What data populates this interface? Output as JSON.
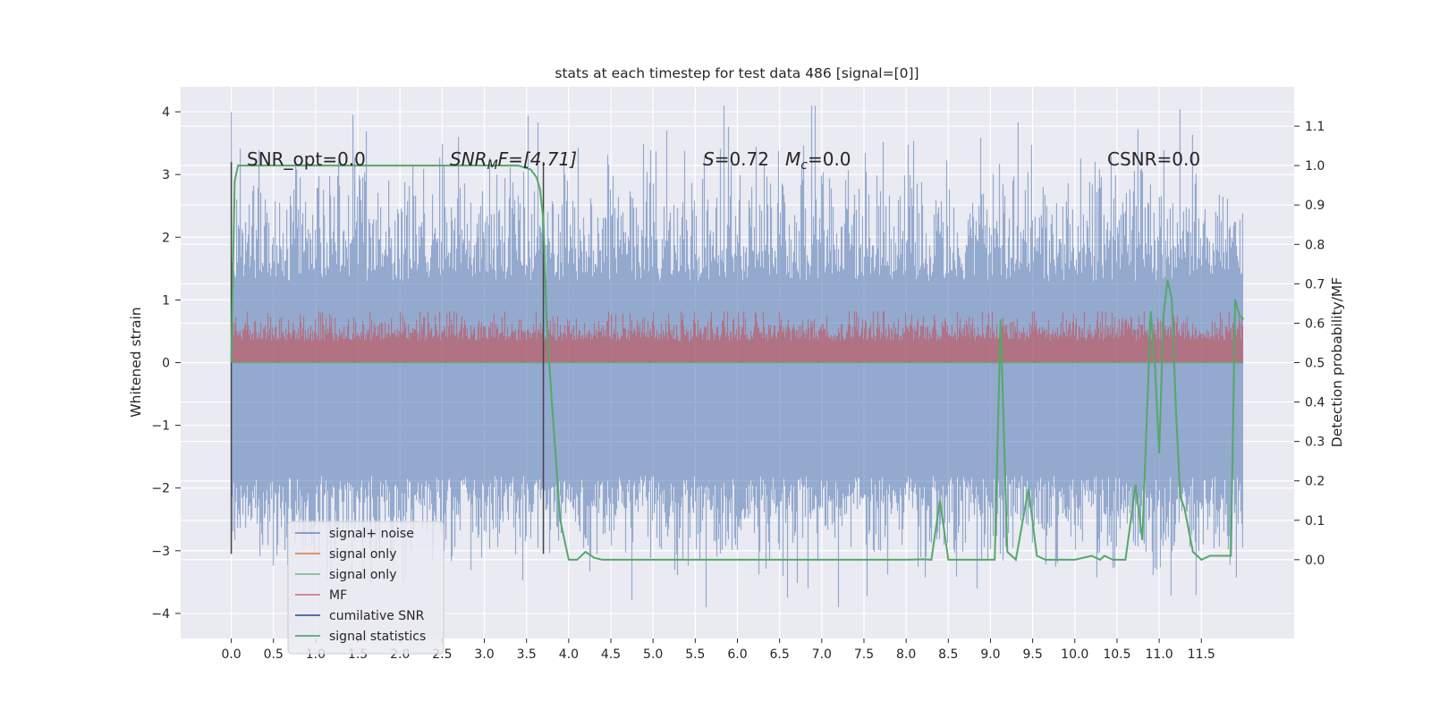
{
  "chart_data": {
    "type": "line",
    "title": "stats at each timestep for test data 486 [signal=[0]]",
    "xlabel": "",
    "ylabel": "Whitened strain",
    "ylabel_right": "Detection probability/MF",
    "xlim": [
      -0.6,
      12.6
    ],
    "ylim": [
      -4.4,
      4.4
    ],
    "ylim_right": [
      -0.2,
      1.2
    ],
    "x_ticks": [
      "0.0",
      "0.5",
      "1.0",
      "1.5",
      "2.0",
      "2.5",
      "3.0",
      "3.5",
      "4.0",
      "4.5",
      "5.0",
      "5.5",
      "6.0",
      "6.5",
      "7.0",
      "7.5",
      "8.0",
      "8.5",
      "9.0",
      "9.5",
      "10.0",
      "10.5",
      "11.0",
      "11.5"
    ],
    "y_ticks": [
      "−4",
      "−3",
      "−2",
      "−1",
      "0",
      "1",
      "2",
      "3",
      "4"
    ],
    "y_ticks_right": [
      "0.0",
      "0.1",
      "0.2",
      "0.3",
      "0.4",
      "0.5",
      "0.6",
      "0.7",
      "0.8",
      "0.9",
      "1.0",
      "1.1"
    ],
    "grid": true,
    "annotations": [
      {
        "id": "snr-opt",
        "text": "SNR_opt=0.0"
      },
      {
        "id": "snr-mf",
        "text": "SNR",
        "sub": "M",
        "rest": "F=[4.71]"
      },
      {
        "id": "s-mc",
        "text": "S",
        "rest": "=0.72",
        "text2": "M",
        "sub2": "c",
        "rest2": "=0.0"
      },
      {
        "id": "csnr",
        "text": "CSNR=0.0"
      }
    ],
    "vertical_markers": [
      0.0,
      3.7
    ],
    "legend": {
      "placement": "lower-left",
      "entries": [
        {
          "label": "signal+ noise",
          "color": "#4c72b0"
        },
        {
          "label": "signal only",
          "color": "#dd8452"
        },
        {
          "label": "signal only",
          "color": "#55a868"
        },
        {
          "label": "MF",
          "color": "#c44e52"
        },
        {
          "label": "cumilative SNR",
          "color": "#3c5ea8"
        },
        {
          "label": "signal statistics",
          "color": "#55a868"
        }
      ]
    },
    "series": [
      {
        "name": "signal+ noise",
        "axis": "left",
        "color": "#4c72b0",
        "description": "dense noise trace from t=0 to 12, amplitude range about -3.9 to 4.1",
        "t_range": [
          0.0,
          12.0
        ],
        "y_range": [
          -3.9,
          4.1
        ]
      },
      {
        "name": "MF",
        "axis": "right",
        "color": "#c44e52",
        "t_range": [
          0.0,
          12.0
        ],
        "y_range": [
          0.5,
          0.63
        ]
      },
      {
        "name": "signal statistics",
        "axis": "right",
        "color": "#55a868",
        "x": [
          0.0,
          0.04,
          0.08,
          0.15,
          0.3,
          0.5,
          1.0,
          1.5,
          2.0,
          2.5,
          3.0,
          3.4,
          3.55,
          3.62,
          3.66,
          3.7,
          3.74,
          3.8,
          3.9,
          4.0,
          4.1,
          4.2,
          4.3,
          4.4,
          4.6,
          5.0,
          6.0,
          7.0,
          8.0,
          8.2,
          8.3,
          8.4,
          8.5,
          8.6,
          8.8,
          9.0,
          9.05,
          9.12,
          9.2,
          9.3,
          9.45,
          9.55,
          9.65,
          9.8,
          10.0,
          10.2,
          10.3,
          10.35,
          10.45,
          10.55,
          10.6,
          10.72,
          10.8,
          10.9,
          10.95,
          11.0,
          11.05,
          11.1,
          11.15,
          11.2,
          11.25,
          11.3,
          11.4,
          11.5,
          11.6,
          11.75,
          11.85,
          11.9,
          11.95,
          12.0
        ],
        "y": [
          0.5,
          0.96,
          1.0,
          1.0,
          1.0,
          1.0,
          1.0,
          1.0,
          1.0,
          1.0,
          1.0,
          1.0,
          0.99,
          0.97,
          0.94,
          0.86,
          0.6,
          0.4,
          0.1,
          0.0,
          0.0,
          0.02,
          0.005,
          0.0,
          0.0,
          0.0,
          0.0,
          0.0,
          0.0,
          0.001,
          0.0,
          0.15,
          0.0,
          0.0,
          0.0,
          0.0,
          0.0,
          0.61,
          0.02,
          0.0,
          0.18,
          0.01,
          0.0,
          0.0,
          0.0,
          0.01,
          0.0,
          0.01,
          0.0,
          0.0,
          0.0,
          0.19,
          0.05,
          0.63,
          0.49,
          0.27,
          0.62,
          0.71,
          0.66,
          0.37,
          0.16,
          0.13,
          0.02,
          0.0,
          0.01,
          0.01,
          0.01,
          0.66,
          0.62,
          0.61
        ]
      }
    ]
  }
}
